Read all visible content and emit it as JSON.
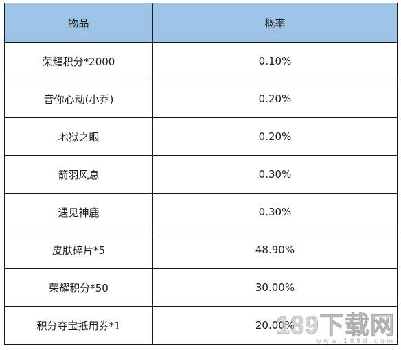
{
  "table": {
    "headers": {
      "item": "物品",
      "rate": "概率"
    },
    "rows": [
      {
        "item": "荣耀积分*2000",
        "rate": "0.10%"
      },
      {
        "item": "音你心动(小乔)",
        "rate": "0.20%"
      },
      {
        "item": "地狱之眼",
        "rate": "0.20%"
      },
      {
        "item": "箭羽风息",
        "rate": "0.30%"
      },
      {
        "item": "遇见神鹿",
        "rate": "0.30%"
      },
      {
        "item": "皮肤碎片*5",
        "rate": "48.90%"
      },
      {
        "item": "荣耀积分*50",
        "rate": "30.00%"
      },
      {
        "item": "积分夺宝抵用券*1",
        "rate": "20.00%"
      }
    ]
  },
  "watermark": {
    "main": "189下载网",
    "sub": "www.189d.com"
  },
  "colors": {
    "header_bg": "#9dc3e6",
    "border": "#1a1a1a",
    "text": "#1a1a1a"
  }
}
